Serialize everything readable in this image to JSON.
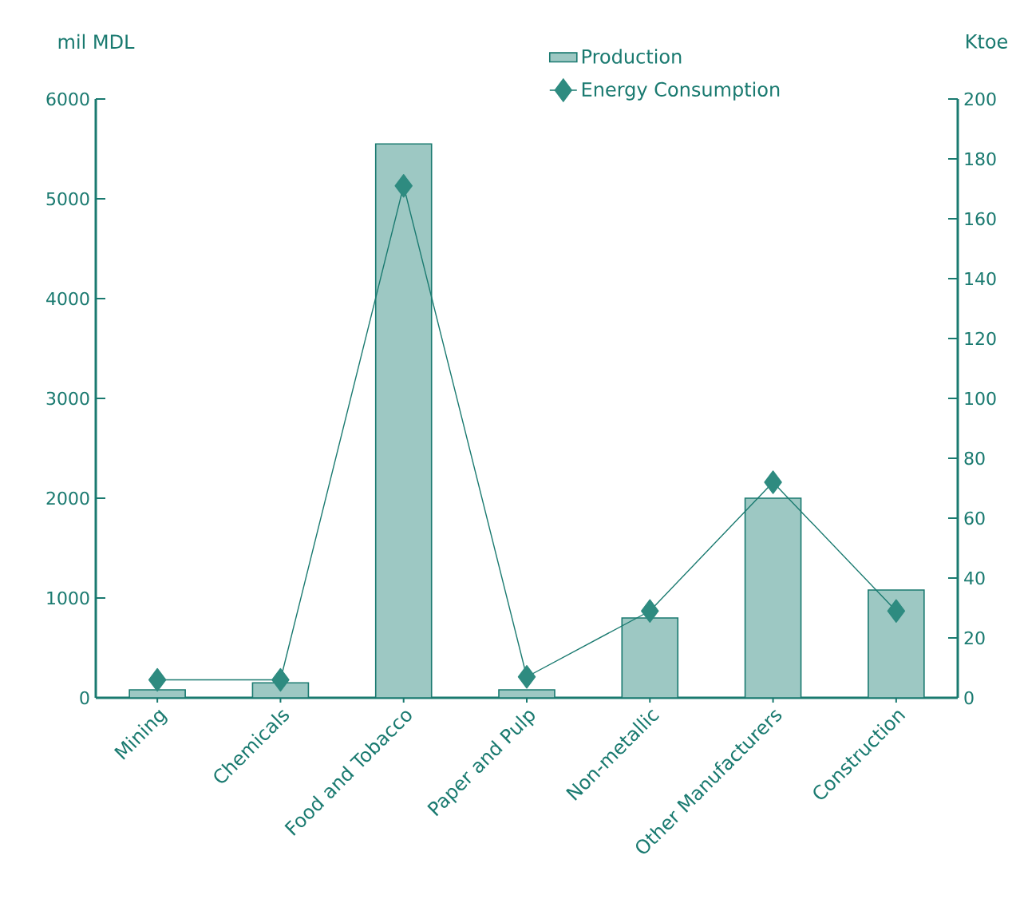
{
  "chart_data": {
    "type": "bar",
    "ylabel": "mil MDL",
    "y2label": "Ktoe",
    "categories": [
      "Mining",
      "Chemicals",
      "Food and Tobacco",
      "Paper and Pulp",
      "Non-metallic",
      "Other Manufacturers",
      "Construction"
    ],
    "series": [
      {
        "name": "Production",
        "color": "#9dc8c3",
        "values": [
          80,
          150,
          5550,
          80,
          800,
          2000,
          1080
        ]
      },
      {
        "name": "Energy Consumption",
        "type": "line",
        "axis": "y2",
        "marker": "diamond",
        "color": "#2e8b80",
        "values": [
          6,
          6,
          171,
          7,
          29,
          72,
          29
        ]
      }
    ],
    "ylim": [
      0,
      6000
    ],
    "yticks": [
      0,
      1000,
      2000,
      3000,
      4000,
      5000,
      6000
    ],
    "y2lim": [
      0,
      200
    ],
    "y2ticks": [
      0,
      20,
      40,
      60,
      80,
      100,
      120,
      140,
      160,
      180,
      200
    ],
    "legend": "top"
  }
}
